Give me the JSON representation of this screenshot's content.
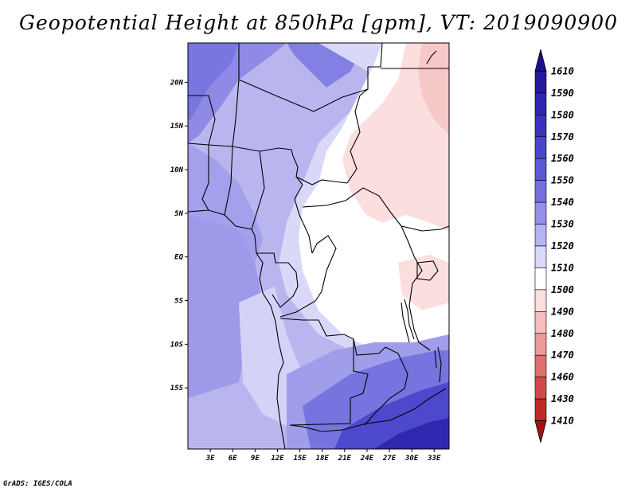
{
  "title": "Geopotential Height at 850hPa [gpm], VT: 2019090900",
  "credit": "GrADS: IGES/COLA",
  "map": {
    "lon_range": [
      0,
      35
    ],
    "lat_range": [
      -22,
      24.5
    ],
    "lon_ticks": [
      {
        "value": 3,
        "label": "3E"
      },
      {
        "value": 6,
        "label": "6E"
      },
      {
        "value": 9,
        "label": "9E"
      },
      {
        "value": 12,
        "label": "12E"
      },
      {
        "value": 15,
        "label": "15E"
      },
      {
        "value": 18,
        "label": "18E"
      },
      {
        "value": 21,
        "label": "21E"
      },
      {
        "value": 24,
        "label": "24E"
      },
      {
        "value": 27,
        "label": "27E"
      },
      {
        "value": 30,
        "label": "30E"
      },
      {
        "value": 33,
        "label": "33E"
      }
    ],
    "lat_ticks": [
      {
        "value": 20,
        "label": "20N"
      },
      {
        "value": 15,
        "label": "15N"
      },
      {
        "value": 10,
        "label": "10N"
      },
      {
        "value": 5,
        "label": "5N"
      },
      {
        "value": 0,
        "label": "EQ"
      },
      {
        "value": -5,
        "label": "5S"
      },
      {
        "value": -10,
        "label": "10S"
      },
      {
        "value": -15,
        "label": "15S"
      }
    ]
  },
  "colorbar": {
    "levels": [
      "1610",
      "1590",
      "1580",
      "1570",
      "1560",
      "1550",
      "1540",
      "1530",
      "1520",
      "1510",
      "1500",
      "1490",
      "1480",
      "1470",
      "1460",
      "1430",
      "1410"
    ],
    "colors": [
      "#1a0f8a",
      "#24199c",
      "#2e25ae",
      "#3a32be",
      "#4a44cc",
      "#5c57d6",
      "#7470e0",
      "#9490e9",
      "#b6b3f1",
      "#d9d8f8",
      "#ffffff",
      "#fbdede",
      "#f4bcbc",
      "#ec9898",
      "#e07070",
      "#d44848",
      "#c02828",
      "#a81010"
    ]
  }
}
